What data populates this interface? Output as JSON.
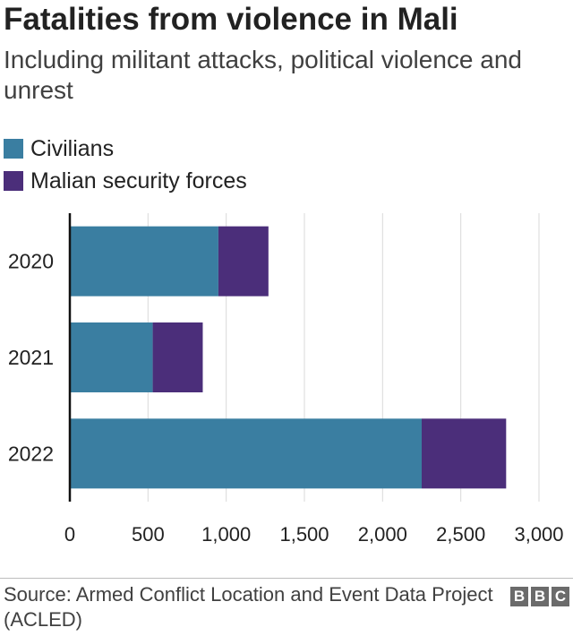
{
  "header": {
    "title": "Fatalities from violence in Mali",
    "subtitle": "Including militant attacks, political violence and unrest"
  },
  "chart_data": {
    "type": "bar",
    "orientation": "horizontal",
    "stacked": true,
    "categories": [
      "2020",
      "2021",
      "2022"
    ],
    "series": [
      {
        "name": "Civilians",
        "color": "#3a7ea1",
        "values": [
          950,
          530,
          2250
        ]
      },
      {
        "name": "Malian security forces",
        "color": "#4b2e7a",
        "values": [
          320,
          320,
          540
        ]
      }
    ],
    "xlim": [
      0,
      3000
    ],
    "xticks": [
      0,
      500,
      1000,
      1500,
      2000,
      2500,
      3000
    ],
    "xtick_labels": [
      "0",
      "500",
      "1,000",
      "1,500",
      "2,000",
      "2,500",
      "3,000"
    ],
    "grid": true,
    "legend_position": "top-left"
  },
  "footer": {
    "source": "Source: Armed Conflict Location and Event Data Project (ACLED)",
    "logo": [
      "B",
      "B",
      "C"
    ]
  }
}
